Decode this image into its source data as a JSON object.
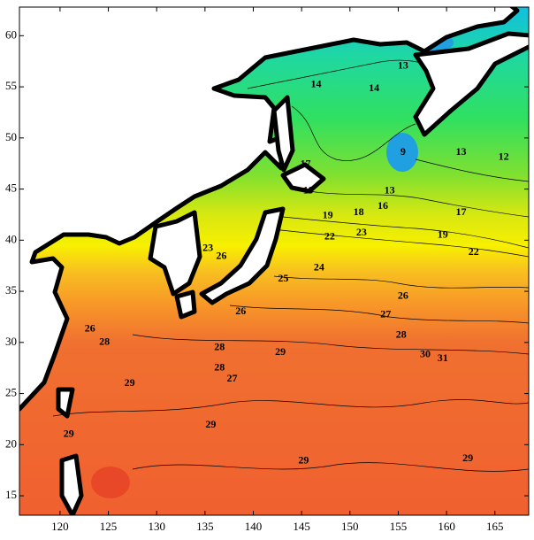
{
  "map": {
    "xlim": [
      115.8,
      168.5
    ],
    "ylim": [
      13.1,
      62.8
    ],
    "xticks": [
      120,
      125,
      130,
      135,
      140,
      145,
      150,
      155,
      160,
      165
    ],
    "yticks": [
      15,
      20,
      25,
      30,
      35,
      40,
      45,
      50,
      55,
      60
    ],
    "contour_labels": [
      {
        "value": 13,
        "lon": 155.5,
        "lat": 57.0
      },
      {
        "value": 14,
        "lon": 146.5,
        "lat": 55.2
      },
      {
        "value": 14,
        "lon": 152.5,
        "lat": 54.8
      },
      {
        "value": 9,
        "lon": 155.5,
        "lat": 48.6
      },
      {
        "value": 13,
        "lon": 161.5,
        "lat": 48.6
      },
      {
        "value": 12,
        "lon": 165.9,
        "lat": 48.1
      },
      {
        "value": 17,
        "lon": 145.4,
        "lat": 47.4
      },
      {
        "value": 19,
        "lon": 145.7,
        "lat": 44.8
      },
      {
        "value": 13,
        "lon": 154.1,
        "lat": 44.8
      },
      {
        "value": 16,
        "lon": 153.4,
        "lat": 43.3
      },
      {
        "value": 18,
        "lon": 150.9,
        "lat": 42.7
      },
      {
        "value": 19,
        "lon": 147.7,
        "lat": 42.4
      },
      {
        "value": 17,
        "lon": 161.5,
        "lat": 42.7
      },
      {
        "value": 22,
        "lon": 147.9,
        "lat": 40.3
      },
      {
        "value": 23,
        "lon": 151.2,
        "lat": 40.7
      },
      {
        "value": 19,
        "lon": 159.6,
        "lat": 40.5
      },
      {
        "value": 22,
        "lon": 162.8,
        "lat": 38.8
      },
      {
        "value": 23,
        "lon": 135.3,
        "lat": 39.2
      },
      {
        "value": 26,
        "lon": 136.7,
        "lat": 38.4
      },
      {
        "value": 24,
        "lon": 146.8,
        "lat": 37.3
      },
      {
        "value": 25,
        "lon": 143.1,
        "lat": 36.2
      },
      {
        "value": 26,
        "lon": 155.5,
        "lat": 34.5
      },
      {
        "value": 26,
        "lon": 138.7,
        "lat": 33.0
      },
      {
        "value": 27,
        "lon": 153.7,
        "lat": 32.7
      },
      {
        "value": 26,
        "lon": 123.1,
        "lat": 31.3
      },
      {
        "value": 28,
        "lon": 124.6,
        "lat": 30.0
      },
      {
        "value": 28,
        "lon": 155.3,
        "lat": 30.7
      },
      {
        "value": 29,
        "lon": 142.8,
        "lat": 29.0
      },
      {
        "value": 28,
        "lon": 136.5,
        "lat": 29.5
      },
      {
        "value": 30,
        "lon": 157.8,
        "lat": 28.8
      },
      {
        "value": 31,
        "lon": 159.6,
        "lat": 28.4
      },
      {
        "value": 28,
        "lon": 136.5,
        "lat": 27.5
      },
      {
        "value": 27,
        "lon": 137.8,
        "lat": 26.4
      },
      {
        "value": 29,
        "lon": 127.2,
        "lat": 26.0
      },
      {
        "value": 29,
        "lon": 135.6,
        "lat": 21.9
      },
      {
        "value": 29,
        "lon": 120.9,
        "lat": 21.0
      },
      {
        "value": 29,
        "lon": 145.2,
        "lat": 18.4
      },
      {
        "value": 29,
        "lon": 162.2,
        "lat": 18.6
      }
    ]
  }
}
